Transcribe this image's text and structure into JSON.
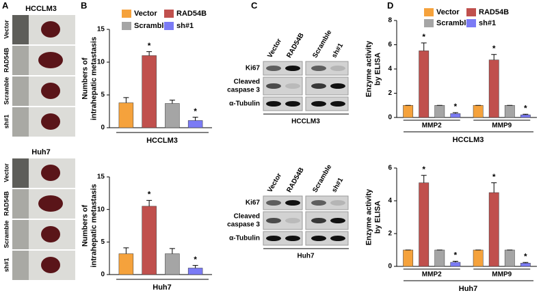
{
  "panel_letters": [
    "A",
    "B",
    "C",
    "D"
  ],
  "panel_a": {
    "groups": [
      {
        "title": "HCCLM3",
        "rows": [
          "Vector",
          "RAD54B",
          "Scramble",
          "sh#1"
        ]
      },
      {
        "title": "Huh7",
        "rows": [
          "Vector",
          "RAD54B",
          "Scramble",
          "sh#1"
        ]
      }
    ]
  },
  "panel_c": {
    "blots": [
      {
        "columns": [
          "Vector",
          "RAD54B",
          "Scramble",
          "sh#1"
        ],
        "rows": [
          [
            "Ki67"
          ],
          [
            "Cleaved",
            "caspase 3"
          ],
          [
            "α-Tubulin"
          ]
        ],
        "cell_line": "HCCLM3"
      },
      {
        "columns": [
          "Vector",
          "RAD54B",
          "Scramble",
          "sh#1"
        ],
        "rows": [
          [
            "Ki67"
          ],
          [
            "Cleaved",
            "caspase 3"
          ],
          [
            "α-Tubulin"
          ]
        ],
        "cell_line": "Huh7"
      }
    ]
  },
  "chart_data": [
    {
      "type": "bar",
      "ylabel": [
        "Numbers of",
        "intrahepatic metastasis"
      ],
      "xlabel": "HCCLM3",
      "legend": true,
      "categories": [
        null
      ],
      "ylim": [
        0,
        15
      ],
      "yticks": [
        0,
        5,
        10,
        15
      ],
      "series": [
        {
          "name": "Vector",
          "color": "#f5a23c",
          "values": [
            3.8
          ],
          "errors": [
            0.8
          ],
          "markers": [
            null
          ]
        },
        {
          "name": "RAD54B",
          "color": "#c0504d",
          "values": [
            11
          ],
          "errors": [
            0.6
          ],
          "markers": [
            "*"
          ]
        },
        {
          "name": "Scramble",
          "color": "#a5a5a5",
          "values": [
            3.7
          ],
          "errors": [
            0.5
          ],
          "markers": [
            null
          ]
        },
        {
          "name": "sh#1",
          "color": "#7b7bf5",
          "values": [
            1.1
          ],
          "errors": [
            0.5
          ],
          "markers": [
            "*"
          ]
        }
      ]
    },
    {
      "type": "bar",
      "ylabel": [
        "Numbers of",
        "intrahepatic metastasis"
      ],
      "xlabel": "Huh7",
      "legend": false,
      "categories": [
        null
      ],
      "ylim": [
        0,
        15
      ],
      "yticks": [
        0,
        5,
        10,
        15
      ],
      "series": [
        {
          "name": "Vector",
          "color": "#f5a23c",
          "values": [
            3.2
          ],
          "errors": [
            0.9
          ],
          "markers": [
            null
          ]
        },
        {
          "name": "RAD54B",
          "color": "#c0504d",
          "values": [
            10.5
          ],
          "errors": [
            0.9
          ],
          "markers": [
            "*"
          ]
        },
        {
          "name": "Scramble",
          "color": "#a5a5a5",
          "values": [
            3.2
          ],
          "errors": [
            0.8
          ],
          "markers": [
            null
          ]
        },
        {
          "name": "sh#1",
          "color": "#7b7bf5",
          "values": [
            1.0
          ],
          "errors": [
            0.4
          ],
          "markers": [
            "*"
          ]
        }
      ]
    },
    {
      "type": "bar",
      "ylabel": [
        "Enzyme activity",
        "by ELISA"
      ],
      "xlabel": "HCCLM3",
      "legend": true,
      "categories": [
        "MMP2",
        "MMP9"
      ],
      "ylim": [
        0,
        8
      ],
      "yticks": [
        0,
        2,
        4,
        6,
        8
      ],
      "series": [
        {
          "name": "Vector",
          "color": "#f5a23c",
          "values": [
            1,
            1
          ],
          "errors": [
            0,
            0
          ],
          "markers": [
            null,
            null
          ]
        },
        {
          "name": "RAD54B",
          "color": "#c0504d",
          "values": [
            5.5,
            4.75
          ],
          "errors": [
            0.65,
            0.45
          ],
          "markers": [
            "*",
            "*"
          ]
        },
        {
          "name": "Scramble",
          "color": "#a5a5a5",
          "values": [
            1,
            1
          ],
          "errors": [
            0,
            0
          ],
          "markers": [
            null,
            null
          ]
        },
        {
          "name": "sh#1",
          "color": "#7b7bf5",
          "values": [
            0.32,
            0.22
          ],
          "errors": [
            0.08,
            0.05
          ],
          "markers": [
            "*",
            "*"
          ]
        }
      ]
    },
    {
      "type": "bar",
      "ylabel": [
        "Enzyme activity",
        "by ELISA"
      ],
      "xlabel": "Huh7",
      "legend": false,
      "categories": [
        "MMP2",
        "MMP9"
      ],
      "ylim": [
        0,
        6
      ],
      "yticks": [
        0,
        2,
        4,
        6
      ],
      "series": [
        {
          "name": "Vector",
          "color": "#f5a23c",
          "values": [
            1,
            1
          ],
          "errors": [
            0,
            0
          ],
          "markers": [
            null,
            null
          ]
        },
        {
          "name": "RAD54B",
          "color": "#c0504d",
          "values": [
            5.1,
            4.5
          ],
          "errors": [
            0.45,
            0.6
          ],
          "markers": [
            "*",
            "*"
          ]
        },
        {
          "name": "Scramble",
          "color": "#a5a5a5",
          "values": [
            1,
            1
          ],
          "errors": [
            0,
            0
          ],
          "markers": [
            null,
            null
          ]
        },
        {
          "name": "sh#1",
          "color": "#7b7bf5",
          "values": [
            0.25,
            0.2
          ],
          "errors": [
            0.06,
            0.04
          ],
          "markers": [
            "*",
            "*"
          ]
        }
      ]
    }
  ]
}
